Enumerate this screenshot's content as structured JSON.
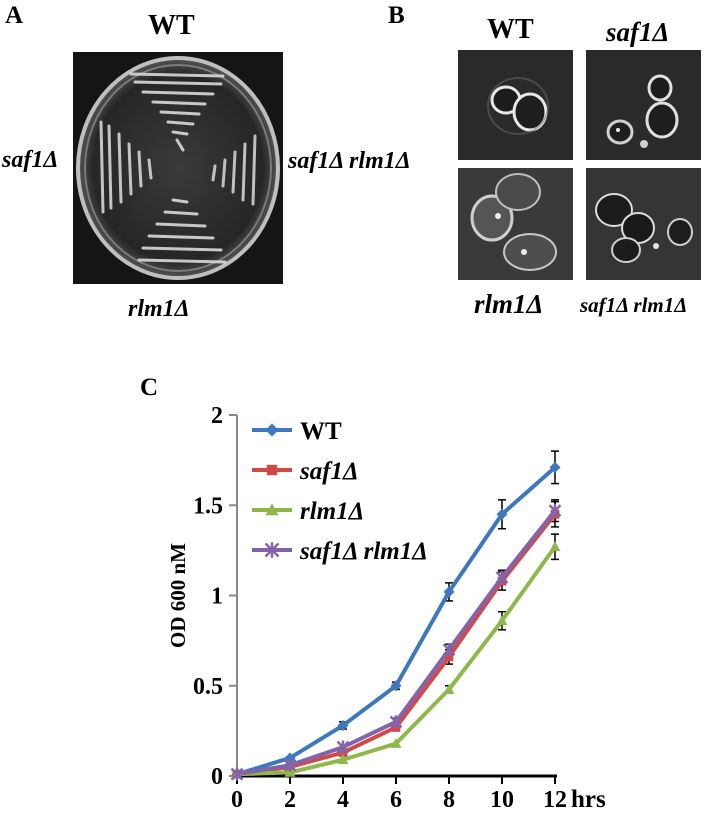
{
  "panel_a": {
    "letter": "A",
    "label_top": "WT",
    "label_left": "saf1Δ",
    "label_right": "saf1Δ rlm1Δ",
    "label_bottom": "rlm1Δ"
  },
  "panel_b": {
    "letter": "B",
    "label_wt": "WT",
    "label_saf1": "saf1Δ",
    "label_rlm1": "rlm1Δ",
    "label_double": "saf1Δ rlm1Δ"
  },
  "panel_c": {
    "letter": "C"
  },
  "chart_data": {
    "type": "line",
    "xlabel": "hrs",
    "ylabel": "OD 600 nM",
    "xlim": [
      0,
      12
    ],
    "ylim": [
      0,
      2
    ],
    "x": [
      0,
      2,
      4,
      6,
      8,
      10,
      12
    ],
    "xticks": [
      0,
      2,
      4,
      6,
      8,
      10,
      12
    ],
    "yticks": [
      0,
      0.5,
      1,
      1.5,
      2
    ],
    "ytick_labels": [
      "0",
      "0.5",
      "1",
      "1.5",
      "2"
    ],
    "legend_position": "top-left",
    "grid": false,
    "series": [
      {
        "name": "WT",
        "color": "#3d78bf",
        "marker": "diamond",
        "values": [
          0.01,
          0.1,
          0.28,
          0.5,
          1.02,
          1.45,
          1.71
        ],
        "errors": [
          0.01,
          0.01,
          0.02,
          0.02,
          0.05,
          0.08,
          0.09
        ]
      },
      {
        "name": "saf1Δ",
        "color": "#d24a48",
        "marker": "square",
        "values": [
          0.01,
          0.05,
          0.13,
          0.27,
          0.66,
          1.08,
          1.45
        ],
        "errors": [
          0.01,
          0.01,
          0.01,
          0.02,
          0.04,
          0.05,
          0.07
        ]
      },
      {
        "name": "rlm1Δ",
        "color": "#8fb84a",
        "marker": "triangle",
        "values": [
          0.01,
          0.02,
          0.09,
          0.18,
          0.48,
          0.86,
          1.27
        ],
        "errors": [
          0.01,
          0.01,
          0.01,
          0.01,
          0.02,
          0.05,
          0.07
        ]
      },
      {
        "name": "saf1Δ rlm1Δ",
        "color": "#8364aa",
        "marker": "x",
        "values": [
          0.01,
          0.06,
          0.16,
          0.3,
          0.7,
          1.1,
          1.47
        ],
        "errors": [
          0.01,
          0.01,
          0.01,
          0.02,
          0.03,
          0.04,
          0.06
        ]
      }
    ]
  }
}
